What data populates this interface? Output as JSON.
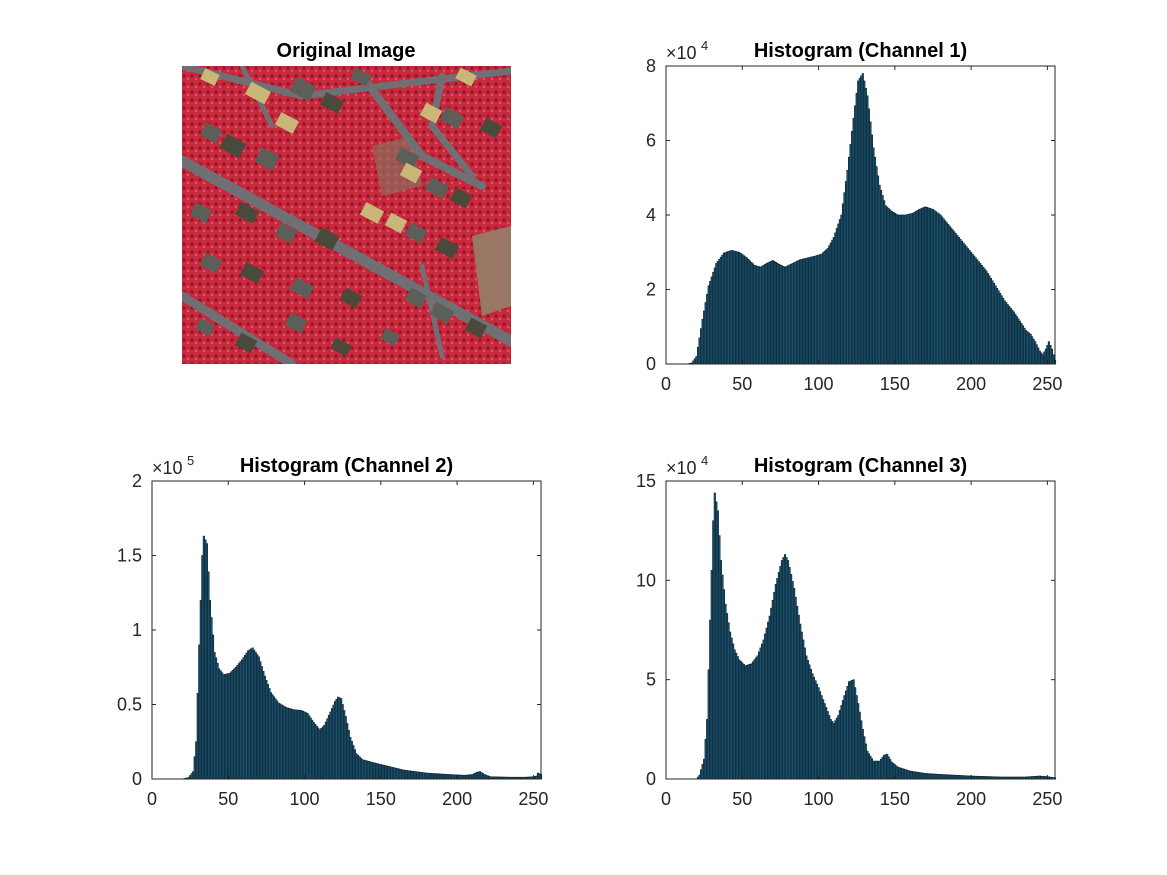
{
  "figure": {
    "image_panel": {
      "title": "Original Image",
      "palette": {
        "vegetation": "#c8283c",
        "vegetation_dark": "#8a1a2a",
        "road": "#6f6f74",
        "roof_dark": "#4a4a3c",
        "roof_light": "#c9b77a",
        "roof_gray": "#5c5e58",
        "field": "#9a7664"
      }
    }
  },
  "chart_data": [
    {
      "type": "bar",
      "title": "Histogram (Channel 1)",
      "xlabel": "",
      "ylabel": "",
      "xlim": [
        0,
        255
      ],
      "ylim": [
        0,
        80000
      ],
      "xticks": [
        0,
        50,
        100,
        150,
        200,
        250
      ],
      "yticks": [
        0,
        20000,
        40000,
        60000,
        80000
      ],
      "ytick_labels": [
        "0",
        "2",
        "4",
        "6",
        "8"
      ],
      "y_multiplier": {
        "base": "×10",
        "exponent": "4"
      },
      "bar_color": "#1c5673",
      "bins": "0-255",
      "profile": [
        [
          0,
          0
        ],
        [
          14,
          0
        ],
        [
          17,
          300
        ],
        [
          20,
          2000
        ],
        [
          24,
          12000
        ],
        [
          28,
          21000
        ],
        [
          33,
          27000
        ],
        [
          38,
          29800
        ],
        [
          43,
          30500
        ],
        [
          48,
          30000
        ],
        [
          53,
          28500
        ],
        [
          58,
          26500
        ],
        [
          62,
          26000
        ],
        [
          66,
          27000
        ],
        [
          70,
          27800
        ],
        [
          74,
          26800
        ],
        [
          78,
          26000
        ],
        [
          83,
          27000
        ],
        [
          88,
          28000
        ],
        [
          93,
          28500
        ],
        [
          98,
          29000
        ],
        [
          102,
          29500
        ],
        [
          106,
          31000
        ],
        [
          110,
          34000
        ],
        [
          115,
          40000
        ],
        [
          119,
          52000
        ],
        [
          123,
          66000
        ],
        [
          126,
          76000
        ],
        [
          129,
          78000
        ],
        [
          132,
          72000
        ],
        [
          136,
          58000
        ],
        [
          140,
          48000
        ],
        [
          144,
          42500
        ],
        [
          148,
          41000
        ],
        [
          152,
          40000
        ],
        [
          157,
          40000
        ],
        [
          162,
          40500
        ],
        [
          166,
          41500
        ],
        [
          170,
          42200
        ],
        [
          175,
          41500
        ],
        [
          180,
          40000
        ],
        [
          186,
          37000
        ],
        [
          192,
          34000
        ],
        [
          198,
          31000
        ],
        [
          204,
          28000
        ],
        [
          210,
          25000
        ],
        [
          216,
          21000
        ],
        [
          222,
          17000
        ],
        [
          228,
          14000
        ],
        [
          232,
          11500
        ],
        [
          236,
          9000
        ],
        [
          239,
          8000
        ],
        [
          242,
          6000
        ],
        [
          245,
          3500
        ],
        [
          247,
          2500
        ],
        [
          249,
          4000
        ],
        [
          251,
          6000
        ],
        [
          253,
          4000
        ],
        [
          255,
          1000
        ]
      ]
    },
    {
      "type": "bar",
      "title": "Histogram (Channel 2)",
      "xlabel": "",
      "ylabel": "",
      "xlim": [
        0,
        255
      ],
      "ylim": [
        0,
        200000
      ],
      "xticks": [
        0,
        50,
        100,
        150,
        200,
        250
      ],
      "yticks": [
        0,
        50000,
        100000,
        150000,
        200000
      ],
      "ytick_labels": [
        "0",
        "0.5",
        "1",
        "1.5",
        "2"
      ],
      "y_multiplier": {
        "base": "×10",
        "exponent": "5"
      },
      "bar_color": "#1c5673",
      "bins": "0-255",
      "profile": [
        [
          0,
          0
        ],
        [
          20,
          0
        ],
        [
          24,
          1000
        ],
        [
          27,
          5000
        ],
        [
          29,
          25000
        ],
        [
          31,
          90000
        ],
        [
          33,
          150000
        ],
        [
          34,
          163000
        ],
        [
          36,
          158000
        ],
        [
          38,
          120000
        ],
        [
          41,
          85000
        ],
        [
          44,
          74000
        ],
        [
          47,
          70000
        ],
        [
          51,
          71000
        ],
        [
          55,
          75000
        ],
        [
          59,
          80000
        ],
        [
          63,
          86000
        ],
        [
          66,
          88000
        ],
        [
          70,
          82000
        ],
        [
          74,
          69000
        ],
        [
          78,
          58000
        ],
        [
          83,
          51000
        ],
        [
          88,
          48000
        ],
        [
          93,
          46500
        ],
        [
          98,
          46000
        ],
        [
          102,
          44000
        ],
        [
          106,
          38000
        ],
        [
          110,
          33000
        ],
        [
          113,
          36000
        ],
        [
          117,
          45000
        ],
        [
          120,
          52000
        ],
        [
          122,
          55000
        ],
        [
          124,
          54000
        ],
        [
          127,
          42000
        ],
        [
          130,
          28000
        ],
        [
          134,
          17000
        ],
        [
          138,
          13000
        ],
        [
          145,
          11000
        ],
        [
          155,
          8500
        ],
        [
          165,
          6000
        ],
        [
          180,
          4000
        ],
        [
          195,
          3000
        ],
        [
          205,
          2500
        ],
        [
          210,
          3000
        ],
        [
          213,
          4500
        ],
        [
          215,
          5000
        ],
        [
          218,
          3000
        ],
        [
          222,
          1500
        ],
        [
          235,
          1200
        ],
        [
          245,
          1200
        ],
        [
          250,
          1500
        ],
        [
          252,
          2000
        ],
        [
          253,
          4000
        ],
        [
          255,
          3000
        ]
      ]
    },
    {
      "type": "bar",
      "title": "Histogram (Channel 3)",
      "xlabel": "",
      "ylabel": "",
      "xlim": [
        0,
        255
      ],
      "ylim": [
        0,
        150000
      ],
      "xticks": [
        0,
        50,
        100,
        150,
        200,
        250
      ],
      "yticks": [
        0,
        50000,
        100000,
        150000
      ],
      "ytick_labels": [
        "0",
        "5",
        "10",
        "15"
      ],
      "y_multiplier": {
        "base": "×10",
        "exponent": "4"
      },
      "bar_color": "#1c5673",
      "bins": "0-255",
      "profile": [
        [
          0,
          0
        ],
        [
          20,
          0
        ],
        [
          22,
          2000
        ],
        [
          25,
          10000
        ],
        [
          27,
          30000
        ],
        [
          29,
          80000
        ],
        [
          31,
          130000
        ],
        [
          32,
          144000
        ],
        [
          34,
          135000
        ],
        [
          36,
          110000
        ],
        [
          39,
          88000
        ],
        [
          42,
          74000
        ],
        [
          45,
          65000
        ],
        [
          48,
          60000
        ],
        [
          52,
          57000
        ],
        [
          56,
          58000
        ],
        [
          60,
          62000
        ],
        [
          64,
          70000
        ],
        [
          68,
          82000
        ],
        [
          72,
          98000
        ],
        [
          76,
          110000
        ],
        [
          78,
          113000
        ],
        [
          80,
          110000
        ],
        [
          84,
          96000
        ],
        [
          88,
          78000
        ],
        [
          92,
          62000
        ],
        [
          96,
          53000
        ],
        [
          100,
          46000
        ],
        [
          104,
          38000
        ],
        [
          108,
          30000
        ],
        [
          110,
          28000
        ],
        [
          113,
          32000
        ],
        [
          117,
          42000
        ],
        [
          120,
          49000
        ],
        [
          123,
          50000
        ],
        [
          126,
          38000
        ],
        [
          129,
          25000
        ],
        [
          132,
          14000
        ],
        [
          136,
          9000
        ],
        [
          140,
          9000
        ],
        [
          143,
          12000
        ],
        [
          145,
          12500
        ],
        [
          148,
          8500
        ],
        [
          152,
          6000
        ],
        [
          160,
          4000
        ],
        [
          170,
          2800
        ],
        [
          180,
          2300
        ],
        [
          200,
          1500
        ],
        [
          220,
          1000
        ],
        [
          235,
          1000
        ],
        [
          245,
          1500
        ],
        [
          250,
          1200
        ],
        [
          255,
          600
        ]
      ]
    }
  ]
}
